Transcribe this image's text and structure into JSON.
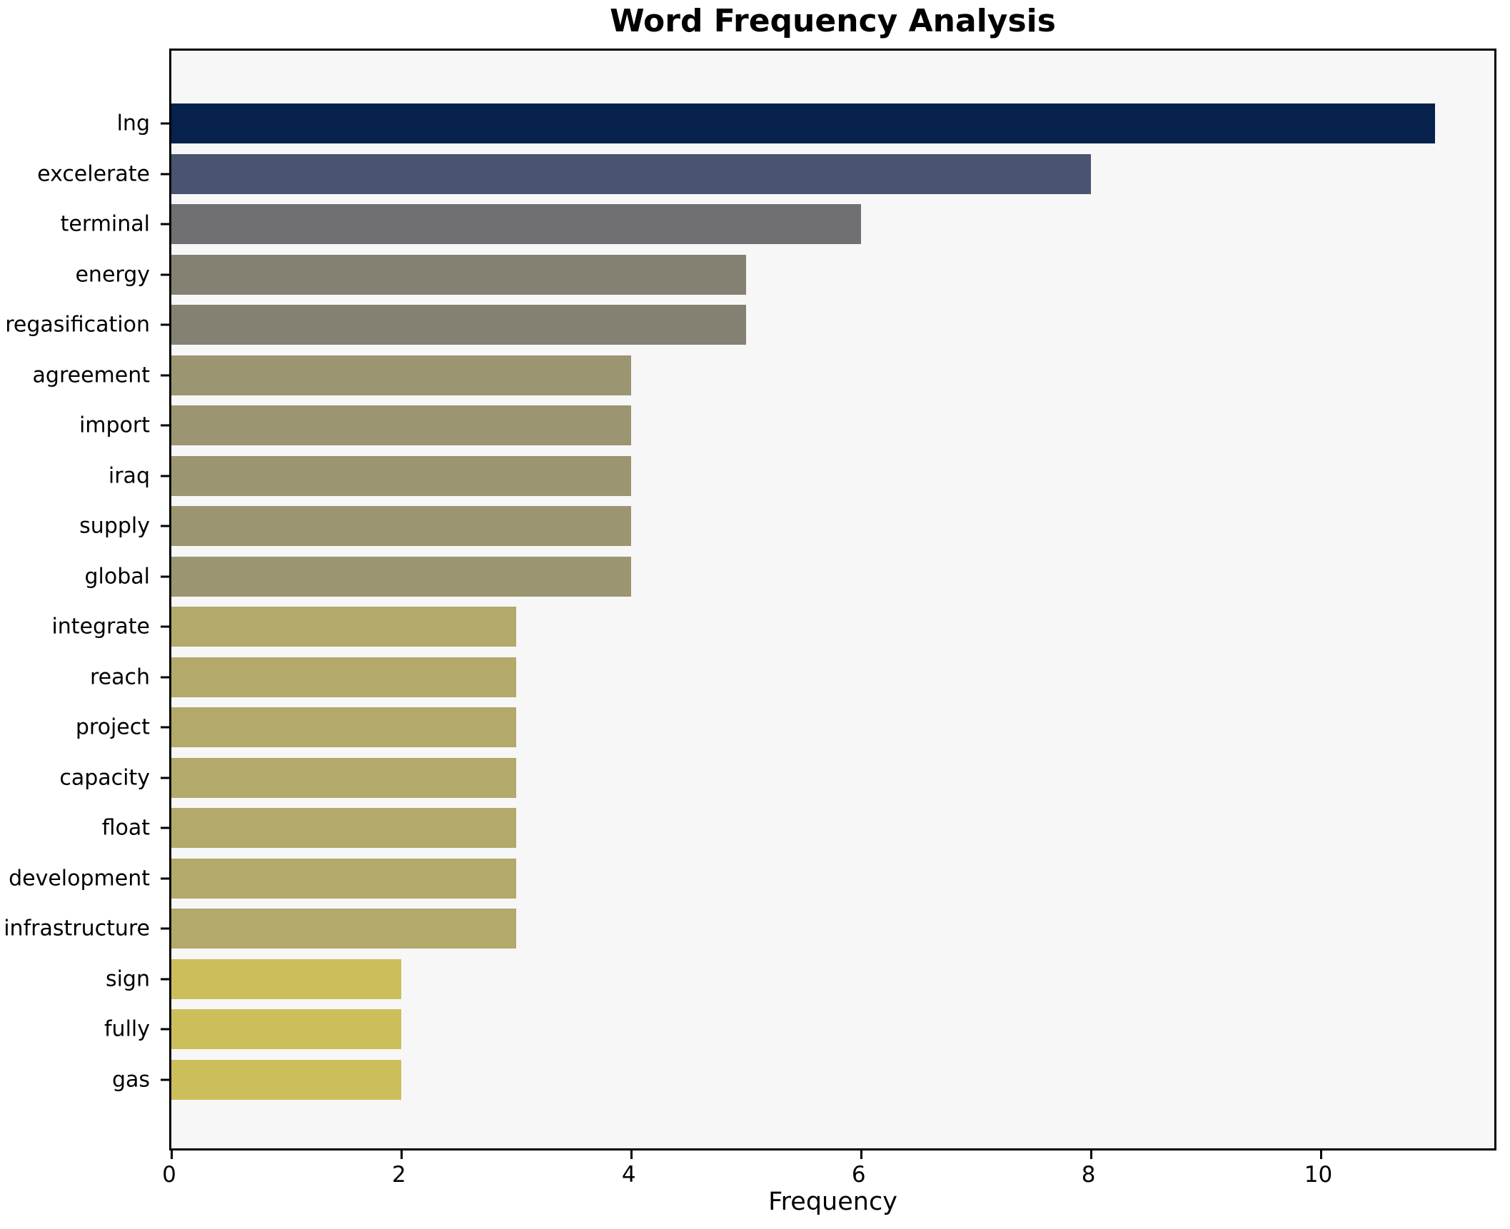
{
  "title": "Word Frequency Analysis",
  "colors": {
    "page_bg": "#ffffff",
    "plot_bg": "#f7f7f7",
    "spine": "#000000",
    "text": "#000000"
  },
  "chart_data": {
    "type": "bar",
    "orientation": "horizontal",
    "title": "Word Frequency Analysis",
    "xlabel": "Frequency",
    "ylabel": "",
    "grid": false,
    "legend": null,
    "xlim": [
      0,
      11.55
    ],
    "xticks": [
      0,
      2,
      4,
      6,
      8,
      10
    ],
    "categories": [
      "lng",
      "excelerate",
      "terminal",
      "energy",
      "regasification",
      "agreement",
      "import",
      "iraq",
      "supply",
      "global",
      "integrate",
      "reach",
      "project",
      "capacity",
      "float",
      "development",
      "infrastructure",
      "sign",
      "fully",
      "gas"
    ],
    "values": [
      11,
      8,
      6,
      5,
      5,
      4,
      4,
      4,
      4,
      4,
      3,
      3,
      3,
      3,
      3,
      3,
      3,
      2,
      2,
      2
    ],
    "bar_colors": [
      "#06224c",
      "#4a536f",
      "#707073",
      "#848173",
      "#848173",
      "#9c9572",
      "#9c9572",
      "#9c9572",
      "#9c9572",
      "#9c9572",
      "#b2a96b",
      "#b2a96b",
      "#b2a96b",
      "#b2a96b",
      "#b2a96b",
      "#b2a96b",
      "#b2a96b",
      "#ccbe5b",
      "#ccbe5b",
      "#ccbe5b"
    ]
  }
}
